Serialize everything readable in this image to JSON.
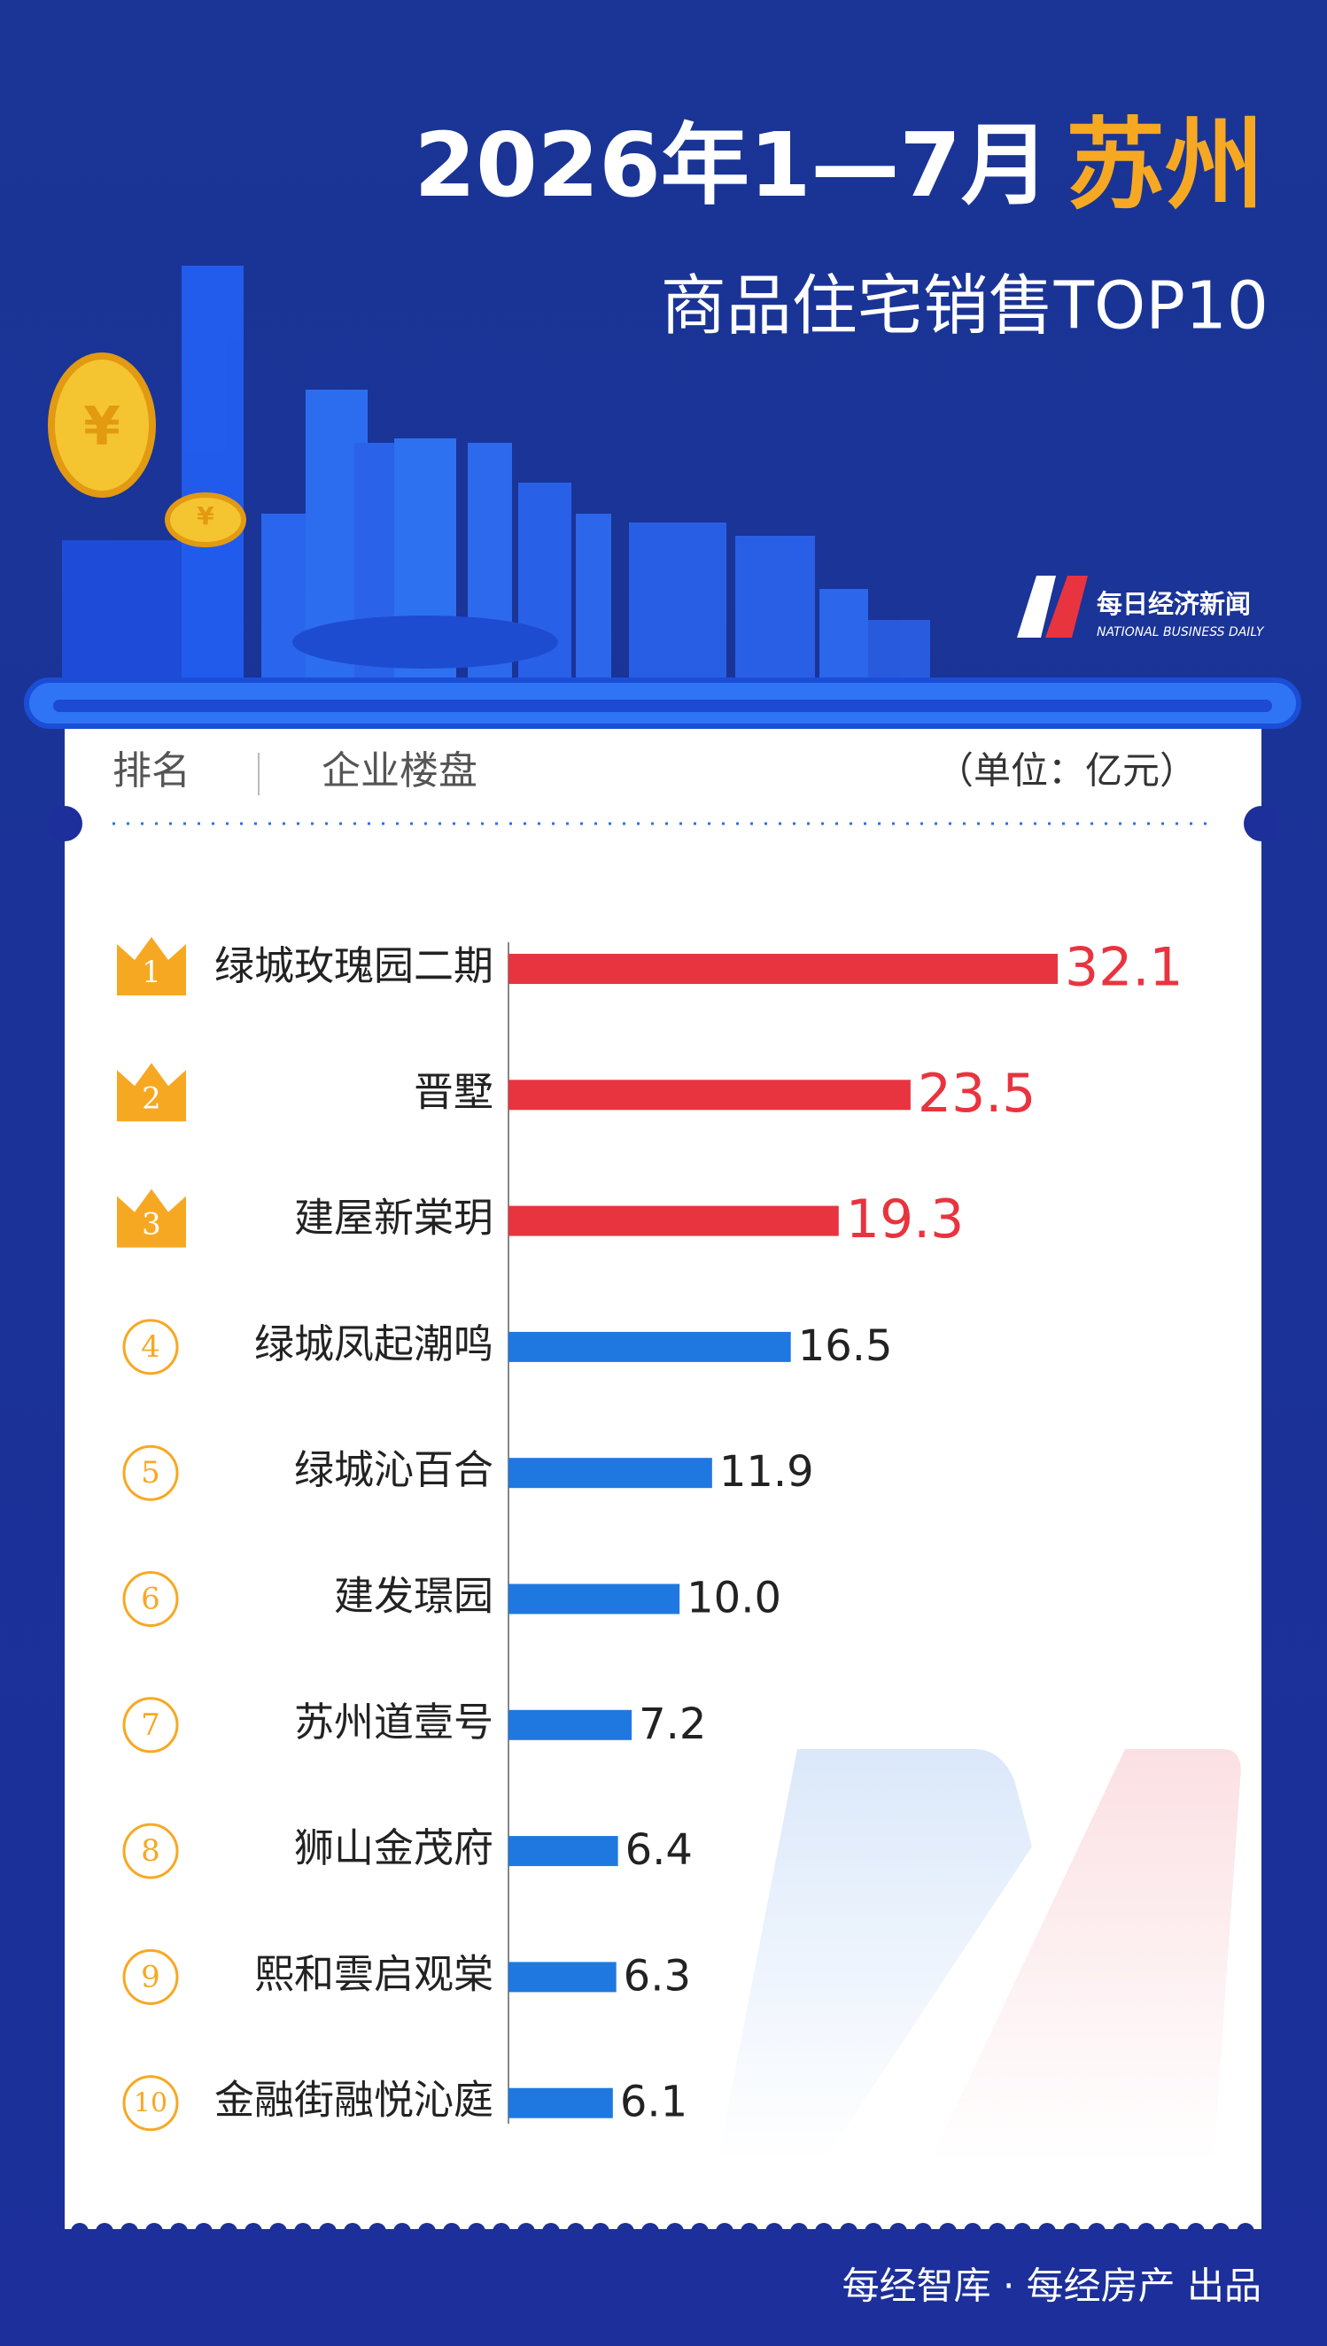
{
  "header": {
    "logo_cn": "每日经济新闻",
    "logo_en": "NATIONAL BUSINESS DAILY"
  },
  "chart_data": {
    "type": "bar",
    "orientation": "horizontal",
    "title": "2026年1—7月",
    "title_city": "苏州",
    "subtitle": "商品住宅销售TOP10",
    "rank_header": "排名",
    "name_header": "企业楼盘",
    "unit": "（单位：亿元）",
    "ranks": [
      1,
      2,
      3,
      4,
      5,
      6,
      7,
      8,
      9,
      10
    ],
    "categories": [
      "绿城玫瑰园二期",
      "晋墅",
      "建屋新棠玥",
      "绿城凤起潮鸣",
      "绿城沁百合",
      "建发璟园",
      "苏州道壹号",
      "狮山金茂府",
      "熙和雲启观棠",
      "金融街融悦沁庭"
    ],
    "values": [
      32.1,
      23.5,
      19.3,
      16.5,
      11.9,
      10.0,
      7.2,
      6.4,
      6.3,
      6.1
    ],
    "value_labels": [
      "32.1",
      "23.5",
      "19.3",
      "16.5",
      "11.9",
      "10.0",
      "7.2",
      "6.4",
      "6.3",
      "6.1"
    ],
    "colors": [
      "#e8343f",
      "#e8343f",
      "#e8343f",
      "#1f78e0",
      "#1f78e0",
      "#1f78e0",
      "#1f78e0",
      "#1f78e0",
      "#1f78e0",
      "#1f78e0"
    ]
  },
  "footer": "每经智库 · 每经房产 出品"
}
